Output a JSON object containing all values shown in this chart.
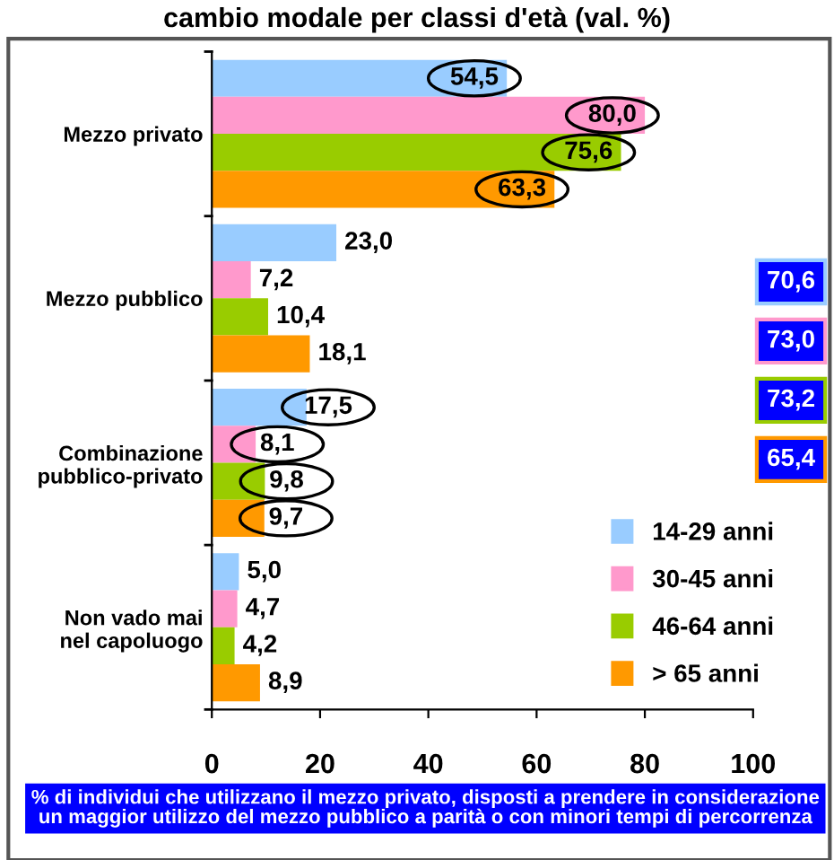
{
  "chart_data": {
    "type": "bar",
    "orientation": "horizontal",
    "title": "cambio modale per classi d'età (val. %)",
    "categories": [
      "Mezzo privato",
      "Mezzo pubblico",
      "Combinazione\npubblico-privato",
      "Non vado mai\nnel capoluogo"
    ],
    "series": [
      {
        "name": "14-29 anni",
        "color": "#99ccff",
        "values": [
          54.5,
          23.0,
          17.5,
          5.0
        ],
        "value_labels": [
          "54,5",
          "23,0",
          "17,5",
          "5,0"
        ]
      },
      {
        "name": "30-45 anni",
        "color": "#ff99cc",
        "values": [
          80.0,
          7.2,
          8.1,
          4.7
        ],
        "value_labels": [
          "80,0",
          "7,2",
          "8,1",
          "4,7"
        ]
      },
      {
        "name": "46-64 anni",
        "color": "#99cc00",
        "values": [
          75.6,
          10.4,
          9.8,
          4.2
        ],
        "value_labels": [
          "75,6",
          "10,4",
          "9,8",
          "4,2"
        ]
      },
      {
        "name": "> 65 anni",
        "color": "#ff9900",
        "values": [
          63.3,
          18.1,
          9.7,
          8.9
        ],
        "value_labels": [
          "63,3",
          "18,1",
          "9,7",
          "8,9"
        ]
      }
    ],
    "xlim": [
      0,
      100
    ],
    "xticks": [
      0,
      20,
      40,
      60,
      80,
      100
    ],
    "grid": false,
    "legend": "bottom right",
    "annotations": [
      "70,6",
      "73,0",
      "73,2",
      "65,4",
      "% di individui che utilizzano il mezzo privato, disposti a prendere in considerazione un maggior utilizzo del mezzo pubblico a parità o con minori tempi di percorrenza"
    ]
  }
}
